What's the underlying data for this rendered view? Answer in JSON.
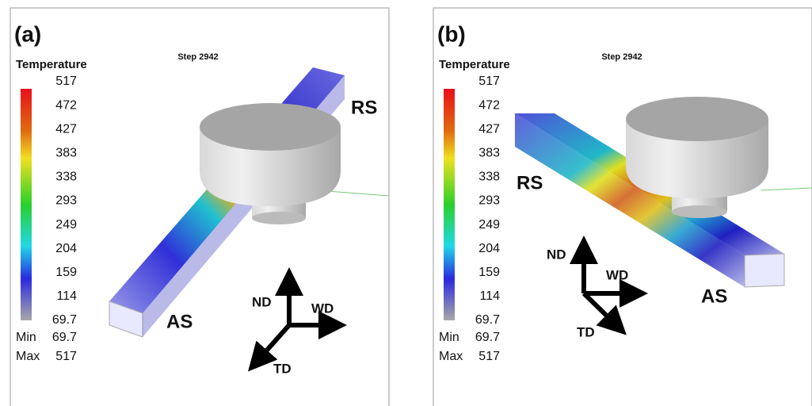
{
  "panels": [
    {
      "label": "(a)",
      "step": "Step 2942",
      "legend": {
        "title": "Temperature",
        "ticks": [
          517,
          472,
          427,
          383,
          338,
          293,
          249,
          204,
          159,
          114,
          69.7
        ],
        "min_label": "Min",
        "min": 69.7,
        "max_label": "Max",
        "max": 517
      },
      "sides": [
        "RS",
        "AS"
      ],
      "axes": [
        "ND",
        "WD",
        "TD"
      ]
    },
    {
      "label": "(b)",
      "step": "Step 2942",
      "legend": {
        "title": "Temperature",
        "ticks": [
          517,
          472,
          427,
          383,
          338,
          293,
          249,
          204,
          159,
          114,
          69.7
        ],
        "min_label": "Min",
        "min": 69.7,
        "max_label": "Max",
        "max": 517
      },
      "sides": [
        "RS",
        "AS"
      ],
      "axes": [
        "ND",
        "WD",
        "TD"
      ]
    }
  ]
}
